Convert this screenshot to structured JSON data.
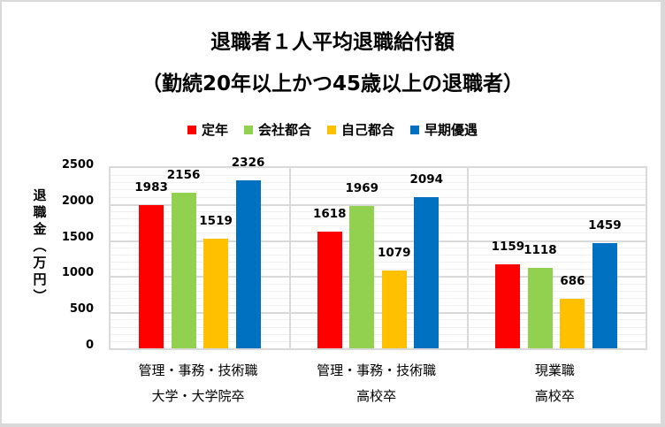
{
  "chart_data": {
    "type": "bar",
    "title": "退職者１人平均退職給付額",
    "subtitle": "（勤続20年以上かつ45歳以上の退職者）",
    "xlabel": "",
    "ylabel": "退職金（万円）",
    "ylim": [
      0,
      2500
    ],
    "yticks": [
      "2500",
      "2000",
      "1500",
      "1000",
      "500",
      "0"
    ],
    "grid": true,
    "legend_position": "top",
    "categories": [
      {
        "line1": "管理・事務・技術職",
        "line2": "大学・大学院卒"
      },
      {
        "line1": "管理・事務・技術職",
        "line2": "高校卒"
      },
      {
        "line1": "現業職",
        "line2": "高校卒"
      }
    ],
    "series": [
      {
        "name": "定年",
        "color": "#ff0000",
        "values": [
          1983,
          1618,
          1159
        ]
      },
      {
        "name": "会社都合",
        "color": "#92d050",
        "values": [
          2156,
          1969,
          1118
        ]
      },
      {
        "name": "自己都合",
        "color": "#ffc000",
        "values": [
          1519,
          1079,
          686
        ]
      },
      {
        "name": "早期優遇",
        "color": "#0070c0",
        "values": [
          2326,
          2094,
          1459
        ]
      }
    ]
  }
}
